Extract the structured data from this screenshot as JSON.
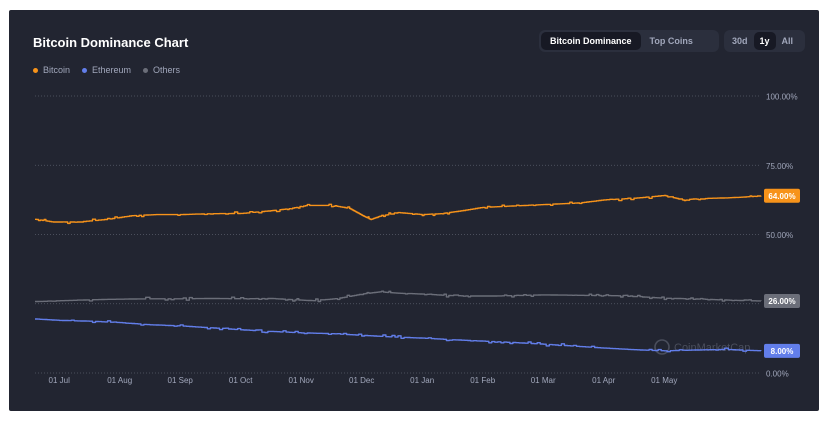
{
  "header": {
    "title": "Bitcoin Dominance Chart",
    "view_tabs": [
      {
        "label": "Bitcoin Dominance",
        "active": true
      },
      {
        "label": "Top Coins",
        "active": false
      }
    ],
    "range_tabs": [
      {
        "label": "30d",
        "active": false
      },
      {
        "label": "1y",
        "active": true
      },
      {
        "label": "All",
        "active": false
      }
    ]
  },
  "watermark": "CoinMarketCap",
  "chart_data": {
    "type": "line",
    "legend_position": "top-left",
    "grid": true,
    "ylim": [
      0,
      100
    ],
    "y_ticks": [
      {
        "value": 0,
        "label": "0.00%"
      },
      {
        "value": 25,
        "label": "25.00%"
      },
      {
        "value": 50,
        "label": "50.00%"
      },
      {
        "value": 75,
        "label": "75.00%"
      },
      {
        "value": 100,
        "label": "100.00%"
      }
    ],
    "x_ticks": [
      "01 Jul",
      "01 Aug",
      "01 Sep",
      "01 Oct",
      "01 Nov",
      "01 Dec",
      "01 Jan",
      "01 Feb",
      "01 Mar",
      "01 Apr",
      "01 May"
    ],
    "x_range_months": [
      -0.4,
      11.6
    ],
    "series": [
      {
        "name": "Bitcoin",
        "color": "#f7931a",
        "current_label": "64.00%",
        "x": [
          -0.4,
          -0.1,
          0.3,
          0.8,
          1.2,
          1.6,
          2.0,
          2.5,
          3.0,
          3.5,
          3.8,
          4.1,
          4.5,
          4.8,
          5.0,
          5.15,
          5.3,
          5.6,
          6.0,
          6.3,
          6.6,
          7.0,
          7.4,
          7.8,
          8.2,
          8.6,
          9.0,
          9.5,
          10.0,
          10.3,
          10.6,
          11.0,
          11.3,
          11.6
        ],
        "y": [
          55.5,
          54.5,
          54.5,
          55.5,
          56.8,
          57.2,
          57.2,
          57.5,
          57.6,
          58.6,
          59.3,
          60.5,
          60.5,
          59.4,
          57.0,
          55.4,
          56.6,
          57.9,
          57.2,
          57.5,
          58.4,
          59.8,
          60.2,
          60.6,
          61.0,
          61.4,
          62.5,
          63.1,
          64.1,
          62.5,
          63.0,
          63.2,
          63.5,
          64.0
        ]
      },
      {
        "name": "Ethereum",
        "color": "#627eea",
        "current_label": "8.00%",
        "x": [
          -0.4,
          0.0,
          0.5,
          1.0,
          1.5,
          2.0,
          2.5,
          3.0,
          3.5,
          4.0,
          4.5,
          5.0,
          5.5,
          6.0,
          6.5,
          7.0,
          7.5,
          8.0,
          8.5,
          9.0,
          9.5,
          10.0,
          10.5,
          11.0,
          11.6
        ],
        "y": [
          19.5,
          19.0,
          18.7,
          18.2,
          17.4,
          17.0,
          16.3,
          15.6,
          15.0,
          14.5,
          14.2,
          13.6,
          13.0,
          12.6,
          12.0,
          11.5,
          11.0,
          10.4,
          9.7,
          9.0,
          8.4,
          8.0,
          8.3,
          8.5,
          8.0
        ]
      },
      {
        "name": "Others",
        "color": "#6b6e79",
        "current_label": "26.00%",
        "x": [
          -0.4,
          0.3,
          0.8,
          1.5,
          2.0,
          2.5,
          3.0,
          3.5,
          3.9,
          4.2,
          4.6,
          5.0,
          5.3,
          5.6,
          6.0,
          6.4,
          6.8,
          7.2,
          7.6,
          8.0,
          8.4,
          8.8,
          9.2,
          9.6,
          10.0,
          10.4,
          10.8,
          11.2,
          11.6
        ],
        "y": [
          25.8,
          26.3,
          26.6,
          26.8,
          26.8,
          26.9,
          26.8,
          26.9,
          26.4,
          26.1,
          26.9,
          28.5,
          29.3,
          28.8,
          28.5,
          28.0,
          27.8,
          27.8,
          28.0,
          28.2,
          28.1,
          28.0,
          27.9,
          27.5,
          27.0,
          26.8,
          26.5,
          26.2,
          26.0
        ]
      }
    ]
  }
}
